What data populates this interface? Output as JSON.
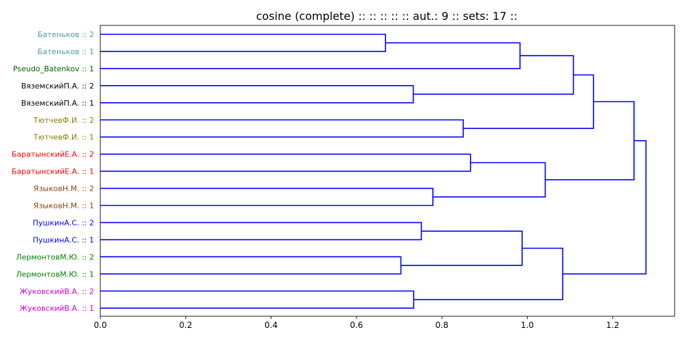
{
  "chart_data": {
    "type": "dendrogram",
    "title": "cosine (complete) :: :: :: :: :: aut.: 9 :: sets: 17 ::",
    "xlabel": "",
    "ylabel": "",
    "xlim": [
      0,
      1.35
    ],
    "x_ticks": [
      "0.0",
      "0.2",
      "0.4",
      "0.6",
      "0.8",
      "1.0",
      "1.2"
    ],
    "x_tick_values": [
      0.0,
      0.2,
      0.4,
      0.6,
      0.8,
      1.0,
      1.2
    ],
    "link_color": "#0000ff",
    "leaves": [
      {
        "label": "Батеньков :: 2",
        "color": "#4c9c9c"
      },
      {
        "label": "Батеньков :: 1",
        "color": "#4c9c9c"
      },
      {
        "label": "Pseudo_Batenkov :: 1",
        "color": "#006400"
      },
      {
        "label": "ВяземскийП.А. :: 2",
        "color": "#000000"
      },
      {
        "label": "ВяземскийП.А. :: 1",
        "color": "#000000"
      },
      {
        "label": "ТютчевФ.И. :: 2",
        "color": "#808000"
      },
      {
        "label": "ТютчевФ.И. :: 1",
        "color": "#808000"
      },
      {
        "label": "БаратынскийЕ.А. :: 2",
        "color": "#ff0000"
      },
      {
        "label": "БаратынскийЕ.А. :: 1",
        "color": "#ff0000"
      },
      {
        "label": "ЯзыковН.М. :: 2",
        "color": "#8b4513"
      },
      {
        "label": "ЯзыковН.М. :: 1",
        "color": "#8b4513"
      },
      {
        "label": "ПушкинА.С. :: 2",
        "color": "#0000ff"
      },
      {
        "label": "ПушкинА.С. :: 1",
        "color": "#0000ff"
      },
      {
        "label": "ЛермонтовМ.Ю. :: 2",
        "color": "#008000"
      },
      {
        "label": "ЛермонтовМ.Ю. :: 1",
        "color": "#008000"
      },
      {
        "label": "ЖуковскийВ.А. :: 2",
        "color": "#cc00cc"
      },
      {
        "label": "ЖуковскийВ.А. :: 1",
        "color": "#cc00cc"
      }
    ],
    "merges": [
      {
        "a": "L0",
        "b": "L1",
        "height": 0.668
      },
      {
        "a": "N0",
        "b": "L2",
        "height": 0.983
      },
      {
        "a": "L3",
        "b": "L4",
        "height": 0.733
      },
      {
        "a": "N1",
        "b": "N2",
        "height": 1.108
      },
      {
        "a": "L5",
        "b": "L6",
        "height": 0.85
      },
      {
        "a": "N3",
        "b": "N4",
        "height": 1.155
      },
      {
        "a": "L7",
        "b": "L8",
        "height": 0.867
      },
      {
        "a": "L9",
        "b": "L10",
        "height": 0.779
      },
      {
        "a": "N6",
        "b": "N7",
        "height": 1.042
      },
      {
        "a": "N5",
        "b": "N8",
        "height": 1.25
      },
      {
        "a": "L11",
        "b": "L12",
        "height": 0.752
      },
      {
        "a": "L13",
        "b": "L14",
        "height": 0.704
      },
      {
        "a": "N10",
        "b": "N11",
        "height": 0.988
      },
      {
        "a": "L15",
        "b": "L16",
        "height": 0.734
      },
      {
        "a": "N12",
        "b": "N13",
        "height": 1.083
      },
      {
        "a": "N9",
        "b": "N14",
        "height": 1.278
      }
    ]
  }
}
